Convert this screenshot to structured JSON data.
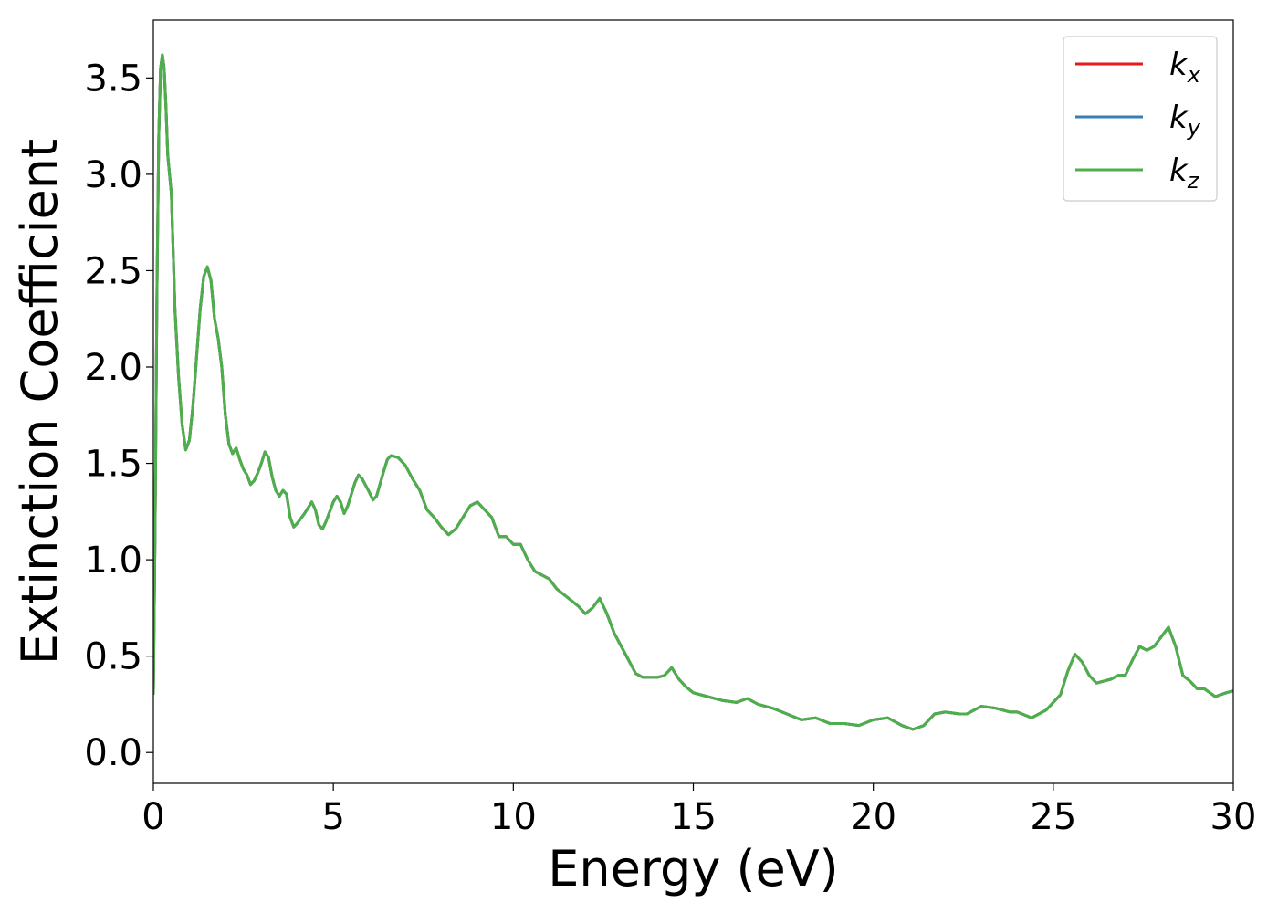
{
  "chart_data": {
    "type": "line",
    "x_label": "Energy (eV)",
    "y_label": "Extinction Coefficient",
    "xlim": [
      0,
      30
    ],
    "ylim": [
      -0.16,
      3.8
    ],
    "xticks": [
      0,
      5,
      10,
      15,
      20,
      25,
      30
    ],
    "yticks": [
      {
        "value": 0,
        "label": "0.0"
      },
      0.5,
      {
        "value": 1,
        "label": "1.0"
      },
      1.5,
      {
        "value": 2,
        "label": "2.0"
      },
      2.5,
      {
        "value": 3,
        "label": "3.0"
      },
      3.5
    ],
    "legend": "upper right",
    "grid": false,
    "x": [
      0,
      0.05,
      0.1,
      0.15,
      0.2,
      0.25,
      0.3,
      0.35,
      0.4,
      0.5,
      0.55,
      0.6,
      0.7,
      0.8,
      0.9,
      1.0,
      1.1,
      1.2,
      1.3,
      1.4,
      1.5,
      1.6,
      1.7,
      1.8,
      1.9,
      2.0,
      2.1,
      2.2,
      2.3,
      2.4,
      2.5,
      2.6,
      2.7,
      2.8,
      2.9,
      3.0,
      3.1,
      3.2,
      3.3,
      3.4,
      3.5,
      3.6,
      3.7,
      3.8,
      3.9,
      4.0,
      4.2,
      4.4,
      4.5,
      4.6,
      4.7,
      4.8,
      5.0,
      5.1,
      5.2,
      5.3,
      5.4,
      5.6,
      5.7,
      5.8,
      6.0,
      6.1,
      6.2,
      6.4,
      6.5,
      6.6,
      6.8,
      7.0,
      7.2,
      7.4,
      7.6,
      7.8,
      8.0,
      8.2,
      8.4,
      8.6,
      8.8,
      9.0,
      9.2,
      9.4,
      9.5,
      9.6,
      9.8,
      10.0,
      10.2,
      10.4,
      10.6,
      10.8,
      11.0,
      11.2,
      11.4,
      11.6,
      11.8,
      12.0,
      12.2,
      12.4,
      12.6,
      12.8,
      13.0,
      13.2,
      13.4,
      13.6,
      13.8,
      14.0,
      14.2,
      14.4,
      14.6,
      14.8,
      15.0,
      15.4,
      15.8,
      16.2,
      16.5,
      16.8,
      17.2,
      17.6,
      18.0,
      18.4,
      18.8,
      19.2,
      19.6,
      20.0,
      20.4,
      20.8,
      21.1,
      21.4,
      21.7,
      22.0,
      22.4,
      22.6,
      23.0,
      23.4,
      23.8,
      24.0,
      24.4,
      24.8,
      25.2,
      25.4,
      25.6,
      25.8,
      26.0,
      26.2,
      26.6,
      26.8,
      27.0,
      27.2,
      27.4,
      27.6,
      27.8,
      28.0,
      28.2,
      28.4,
      28.6,
      28.8,
      29.0,
      29.2,
      29.5,
      29.8,
      30.0
    ],
    "series": [
      {
        "name": "kx",
        "color": "#e41a1c",
        "values": [
          0.3,
          1.2,
          2.4,
          3.2,
          3.55,
          3.62,
          3.55,
          3.35,
          3.1,
          2.9,
          2.6,
          2.3,
          1.95,
          1.7,
          1.57,
          1.62,
          1.8,
          2.05,
          2.3,
          2.47,
          2.52,
          2.45,
          2.25,
          2.15,
          2.0,
          1.75,
          1.6,
          1.55,
          1.58,
          1.52,
          1.47,
          1.44,
          1.39,
          1.41,
          1.45,
          1.5,
          1.56,
          1.53,
          1.43,
          1.36,
          1.33,
          1.36,
          1.34,
          1.22,
          1.17,
          1.19,
          1.24,
          1.3,
          1.26,
          1.18,
          1.16,
          1.2,
          1.3,
          1.33,
          1.3,
          1.24,
          1.28,
          1.4,
          1.44,
          1.42,
          1.35,
          1.31,
          1.33,
          1.46,
          1.52,
          1.54,
          1.53,
          1.49,
          1.42,
          1.36,
          1.26,
          1.22,
          1.17,
          1.13,
          1.16,
          1.22,
          1.28,
          1.3,
          1.26,
          1.22,
          1.17,
          1.12,
          1.12,
          1.08,
          1.08,
          1.0,
          0.94,
          0.92,
          0.9,
          0.85,
          0.82,
          0.79,
          0.76,
          0.72,
          0.75,
          0.8,
          0.72,
          0.62,
          0.55,
          0.48,
          0.41,
          0.39,
          0.39,
          0.39,
          0.4,
          0.44,
          0.38,
          0.34,
          0.31,
          0.29,
          0.27,
          0.26,
          0.28,
          0.25,
          0.23,
          0.2,
          0.17,
          0.18,
          0.15,
          0.15,
          0.14,
          0.17,
          0.18,
          0.14,
          0.12,
          0.14,
          0.2,
          0.21,
          0.2,
          0.2,
          0.24,
          0.23,
          0.21,
          0.21,
          0.18,
          0.22,
          0.3,
          0.42,
          0.51,
          0.47,
          0.4,
          0.36,
          0.38,
          0.4,
          0.4,
          0.48,
          0.55,
          0.53,
          0.55,
          0.6,
          0.65,
          0.55,
          0.4,
          0.37,
          0.33,
          0.33,
          0.29,
          0.31,
          0.32
        ]
      },
      {
        "name": "ky",
        "color": "#377eb8",
        "values": [
          0.3,
          1.2,
          2.4,
          3.2,
          3.55,
          3.62,
          3.55,
          3.35,
          3.1,
          2.9,
          2.6,
          2.3,
          1.95,
          1.7,
          1.57,
          1.62,
          1.8,
          2.05,
          2.3,
          2.47,
          2.52,
          2.45,
          2.25,
          2.15,
          2.0,
          1.75,
          1.6,
          1.55,
          1.58,
          1.52,
          1.47,
          1.44,
          1.39,
          1.41,
          1.45,
          1.5,
          1.56,
          1.53,
          1.43,
          1.36,
          1.33,
          1.36,
          1.34,
          1.22,
          1.17,
          1.19,
          1.24,
          1.3,
          1.26,
          1.18,
          1.16,
          1.2,
          1.3,
          1.33,
          1.3,
          1.24,
          1.28,
          1.4,
          1.44,
          1.42,
          1.35,
          1.31,
          1.33,
          1.46,
          1.52,
          1.54,
          1.53,
          1.49,
          1.42,
          1.36,
          1.26,
          1.22,
          1.17,
          1.13,
          1.16,
          1.22,
          1.28,
          1.3,
          1.26,
          1.22,
          1.17,
          1.12,
          1.12,
          1.08,
          1.08,
          1.0,
          0.94,
          0.92,
          0.9,
          0.85,
          0.82,
          0.79,
          0.76,
          0.72,
          0.75,
          0.8,
          0.72,
          0.62,
          0.55,
          0.48,
          0.41,
          0.39,
          0.39,
          0.39,
          0.4,
          0.44,
          0.38,
          0.34,
          0.31,
          0.29,
          0.27,
          0.26,
          0.28,
          0.25,
          0.23,
          0.2,
          0.17,
          0.18,
          0.15,
          0.15,
          0.14,
          0.17,
          0.18,
          0.14,
          0.12,
          0.14,
          0.2,
          0.21,
          0.2,
          0.2,
          0.24,
          0.23,
          0.21,
          0.21,
          0.18,
          0.22,
          0.3,
          0.42,
          0.51,
          0.47,
          0.4,
          0.36,
          0.38,
          0.4,
          0.4,
          0.48,
          0.55,
          0.53,
          0.55,
          0.6,
          0.65,
          0.55,
          0.4,
          0.37,
          0.33,
          0.33,
          0.29,
          0.31,
          0.32
        ]
      },
      {
        "name": "kz",
        "color": "#4daf4a",
        "values": [
          0.3,
          1.2,
          2.4,
          3.2,
          3.55,
          3.62,
          3.55,
          3.35,
          3.1,
          2.9,
          2.6,
          2.3,
          1.95,
          1.7,
          1.57,
          1.62,
          1.8,
          2.05,
          2.3,
          2.47,
          2.52,
          2.45,
          2.25,
          2.15,
          2.0,
          1.75,
          1.6,
          1.55,
          1.58,
          1.52,
          1.47,
          1.44,
          1.39,
          1.41,
          1.45,
          1.5,
          1.56,
          1.53,
          1.43,
          1.36,
          1.33,
          1.36,
          1.34,
          1.22,
          1.17,
          1.19,
          1.24,
          1.3,
          1.26,
          1.18,
          1.16,
          1.2,
          1.3,
          1.33,
          1.3,
          1.24,
          1.28,
          1.4,
          1.44,
          1.42,
          1.35,
          1.31,
          1.33,
          1.46,
          1.52,
          1.54,
          1.53,
          1.49,
          1.42,
          1.36,
          1.26,
          1.22,
          1.17,
          1.13,
          1.16,
          1.22,
          1.28,
          1.3,
          1.26,
          1.22,
          1.17,
          1.12,
          1.12,
          1.08,
          1.08,
          1.0,
          0.94,
          0.92,
          0.9,
          0.85,
          0.82,
          0.79,
          0.76,
          0.72,
          0.75,
          0.8,
          0.72,
          0.62,
          0.55,
          0.48,
          0.41,
          0.39,
          0.39,
          0.39,
          0.4,
          0.44,
          0.38,
          0.34,
          0.31,
          0.29,
          0.27,
          0.26,
          0.28,
          0.25,
          0.23,
          0.2,
          0.17,
          0.18,
          0.15,
          0.15,
          0.14,
          0.17,
          0.18,
          0.14,
          0.12,
          0.14,
          0.2,
          0.21,
          0.2,
          0.2,
          0.24,
          0.23,
          0.21,
          0.21,
          0.18,
          0.22,
          0.3,
          0.42,
          0.51,
          0.47,
          0.4,
          0.36,
          0.38,
          0.4,
          0.4,
          0.48,
          0.55,
          0.53,
          0.55,
          0.6,
          0.65,
          0.55,
          0.4,
          0.37,
          0.33,
          0.33,
          0.29,
          0.31,
          0.32
        ]
      }
    ]
  }
}
